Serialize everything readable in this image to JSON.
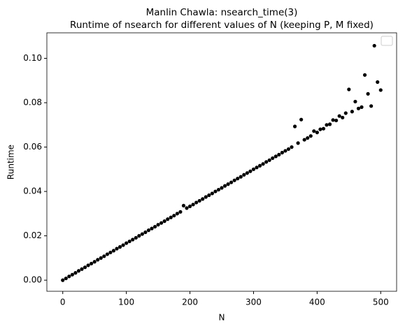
{
  "chart_data": {
    "type": "scatter",
    "title": "Manlin Chawla: nsearch_time(3)",
    "subtitle": "Runtime of nsearch for different values of N (keeping P, M fixed)",
    "x_label": "N",
    "y_label": "Runtime",
    "color": "#000000",
    "x": [
      0,
      5,
      10,
      15,
      20,
      25,
      30,
      35,
      40,
      45,
      50,
      55,
      60,
      65,
      70,
      75,
      80,
      85,
      90,
      95,
      100,
      105,
      110,
      115,
      120,
      125,
      130,
      135,
      140,
      145,
      150,
      155,
      160,
      165,
      170,
      175,
      180,
      185,
      190,
      195,
      200,
      205,
      210,
      215,
      220,
      225,
      230,
      235,
      240,
      245,
      250,
      255,
      260,
      265,
      270,
      275,
      280,
      285,
      290,
      295,
      300,
      305,
      310,
      315,
      320,
      325,
      330,
      335,
      340,
      345,
      350,
      355,
      360,
      365,
      370,
      375,
      380,
      385,
      390,
      395,
      400,
      405,
      410,
      415,
      420,
      425,
      430,
      435,
      440,
      445,
      450,
      455,
      460,
      465,
      470,
      475,
      480,
      485,
      490,
      495,
      500
    ],
    "values": [
      0.0,
      0.0008,
      0.0017,
      0.0025,
      0.0033,
      0.0042,
      0.005,
      0.0058,
      0.0067,
      0.0075,
      0.0083,
      0.0092,
      0.01,
      0.0108,
      0.0117,
      0.0125,
      0.0133,
      0.0142,
      0.015,
      0.0158,
      0.0167,
      0.0175,
      0.0183,
      0.0191,
      0.02,
      0.0208,
      0.0216,
      0.0225,
      0.0233,
      0.0241,
      0.025,
      0.0258,
      0.0266,
      0.0275,
      0.0283,
      0.0291,
      0.03,
      0.0308,
      0.0336,
      0.0325,
      0.0333,
      0.0341,
      0.035,
      0.0358,
      0.0366,
      0.0375,
      0.0383,
      0.0391,
      0.04,
      0.0408,
      0.0416,
      0.0425,
      0.0433,
      0.0441,
      0.045,
      0.0458,
      0.0466,
      0.0475,
      0.0483,
      0.0491,
      0.05,
      0.0508,
      0.0516,
      0.0524,
      0.0533,
      0.0541,
      0.055,
      0.0558,
      0.0566,
      0.0575,
      0.0583,
      0.0591,
      0.06,
      0.0693,
      0.0618,
      0.0724,
      0.0633,
      0.0641,
      0.065,
      0.0672,
      0.0666,
      0.068,
      0.0683,
      0.07,
      0.0703,
      0.0722,
      0.072,
      0.074,
      0.0733,
      0.0753,
      0.086,
      0.076,
      0.0805,
      0.0774,
      0.078,
      0.0925,
      0.084,
      0.0785,
      0.1057,
      0.0893,
      0.0857
    ],
    "xlim": [
      -25,
      525
    ],
    "ylim": [
      -0.005,
      0.1115
    ],
    "xticks": [
      0,
      100,
      200,
      300,
      400,
      500
    ],
    "yticks": [
      {
        "value": 0,
        "label": "0.00"
      },
      {
        "value": 0.02,
        "label": "0.02"
      },
      {
        "value": 0.04,
        "label": "0.04"
      },
      {
        "value": 0.06,
        "label": "0.06"
      },
      {
        "value": 0.08,
        "label": "0.08"
      },
      {
        "value": 0.1,
        "label": "0.10"
      }
    ],
    "legend": "upper right"
  }
}
